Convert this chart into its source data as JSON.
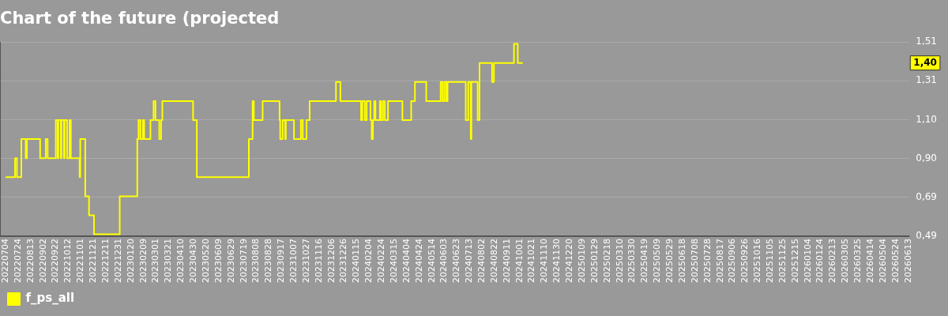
{
  "chart_data": {
    "type": "step",
    "title": "Chart of the future (projected",
    "x": [
      "2022-07-04",
      "2022-07-19",
      "2022-07-22",
      "2022-07-29",
      "2022-08-05",
      "2022-08-07",
      "2022-08-28",
      "2022-09-06",
      "2022-09-09",
      "2022-09-22",
      "2022-09-25",
      "2022-09-26",
      "2022-09-30",
      "2022-10-01",
      "2022-10-05",
      "2022-10-06",
      "2022-10-10",
      "2022-10-14",
      "2022-10-16",
      "2022-10-30",
      "2022-10-31",
      "2022-11-08",
      "2022-11-14",
      "2022-11-22",
      "2023-01-02",
      "2023-01-30",
      "2023-02-01",
      "2023-02-04",
      "2023-02-08",
      "2023-02-10",
      "2023-02-20",
      "2023-02-25",
      "2023-02-28",
      "2023-03-06",
      "2023-03-09",
      "2023-03-11",
      "2023-04-29",
      "2023-05-05",
      "2023-07-27",
      "2023-08-02",
      "2023-08-04",
      "2023-08-18",
      "2023-09-14",
      "2023-09-15",
      "2023-09-19",
      "2023-09-23",
      "2023-09-24",
      "2023-10-07",
      "2023-10-18",
      "2023-10-21",
      "2023-10-27",
      "2023-11-01",
      "2023-12-13",
      "2023-12-20",
      "2024-01-22",
      "2024-01-24",
      "2024-01-28",
      "2024-01-31",
      "2024-02-06",
      "2024-02-08",
      "2024-02-10",
      "2024-02-12",
      "2024-02-14",
      "2024-02-21",
      "2024-02-23",
      "2024-02-26",
      "2024-02-29",
      "2024-03-05",
      "2024-03-28",
      "2024-04-11",
      "2024-04-17",
      "2024-05-05",
      "2024-05-28",
      "2024-05-31",
      "2024-06-03",
      "2024-06-06",
      "2024-06-08",
      "2024-07-07",
      "2024-07-11",
      "2024-07-15",
      "2024-07-16",
      "2024-07-26",
      "2024-07-29",
      "2024-08-18",
      "2024-08-21",
      "2024-09-22",
      "2024-09-28",
      "2024-10-06"
    ],
    "series": [
      {
        "name": "f_ps_all",
        "color": "#ffff00",
        "values": [
          0.8,
          0.9,
          0.8,
          1.0,
          0.9,
          1.0,
          0.9,
          1.0,
          0.9,
          1.1,
          0.9,
          1.1,
          0.9,
          1.1,
          0.9,
          1.1,
          0.9,
          1.1,
          0.9,
          0.8,
          1.0,
          0.7,
          0.6,
          0.5,
          0.7,
          1.0,
          1.1,
          1.0,
          1.1,
          1.0,
          1.1,
          1.2,
          1.1,
          1.0,
          1.1,
          1.2,
          1.1,
          0.8,
          1.0,
          1.2,
          1.1,
          1.2,
          1.1,
          1.0,
          1.1,
          1.0,
          1.1,
          1.0,
          1.1,
          1.0,
          1.1,
          1.2,
          1.3,
          1.2,
          1.1,
          1.2,
          1.1,
          1.2,
          1.1,
          1.0,
          1.1,
          1.2,
          1.1,
          1.2,
          1.1,
          1.2,
          1.1,
          1.2,
          1.1,
          1.2,
          1.3,
          1.2,
          1.3,
          1.2,
          1.3,
          1.2,
          1.3,
          1.1,
          1.3,
          1.0,
          1.3,
          1.1,
          1.4,
          1.3,
          1.4,
          1.5,
          1.4,
          1.4
        ]
      }
    ],
    "xlim": [
      "2022-06-25",
      "2026-06-15"
    ],
    "xticks": [
      {
        "value": "2022-07-04",
        "label": "20220704"
      },
      {
        "value": "2022-07-24",
        "label": "20220724"
      },
      {
        "value": "2022-08-13",
        "label": "20220813"
      },
      {
        "value": "2022-09-02",
        "label": "20220902"
      },
      {
        "value": "2022-09-22",
        "label": "20220922"
      },
      {
        "value": "2022-10-12",
        "label": "20221012"
      },
      {
        "value": "2022-11-01",
        "label": "20221101"
      },
      {
        "value": "2022-11-21",
        "label": "20221121"
      },
      {
        "value": "2022-12-11",
        "label": "20221211"
      },
      {
        "value": "2022-12-31",
        "label": "20221231"
      },
      {
        "value": "2023-01-20",
        "label": "20230120"
      },
      {
        "value": "2023-02-09",
        "label": "20230209"
      },
      {
        "value": "2023-03-01",
        "label": "20230301"
      },
      {
        "value": "2023-03-21",
        "label": "20230321"
      },
      {
        "value": "2023-04-10",
        "label": "20230410"
      },
      {
        "value": "2023-04-30",
        "label": "20230430"
      },
      {
        "value": "2023-05-20",
        "label": "20230520"
      },
      {
        "value": "2023-06-09",
        "label": "20230609"
      },
      {
        "value": "2023-06-29",
        "label": "20230629"
      },
      {
        "value": "2023-07-19",
        "label": "20230719"
      },
      {
        "value": "2023-08-08",
        "label": "20230808"
      },
      {
        "value": "2023-08-28",
        "label": "20230828"
      },
      {
        "value": "2023-09-17",
        "label": "20230917"
      },
      {
        "value": "2023-10-07",
        "label": "20231007"
      },
      {
        "value": "2023-10-27",
        "label": "20231027"
      },
      {
        "value": "2023-11-16",
        "label": "20231116"
      },
      {
        "value": "2023-12-06",
        "label": "20231206"
      },
      {
        "value": "2023-12-26",
        "label": "20231226"
      },
      {
        "value": "2024-01-15",
        "label": "20240115"
      },
      {
        "value": "2024-02-04",
        "label": "20240204"
      },
      {
        "value": "2024-02-24",
        "label": "20240224"
      },
      {
        "value": "2024-03-15",
        "label": "20240315"
      },
      {
        "value": "2024-04-04",
        "label": "20240404"
      },
      {
        "value": "2024-04-24",
        "label": "20240424"
      },
      {
        "value": "2024-05-14",
        "label": "20240514"
      },
      {
        "value": "2024-06-03",
        "label": "20240603"
      },
      {
        "value": "2024-06-23",
        "label": "20240623"
      },
      {
        "value": "2024-07-13",
        "label": "20240713"
      },
      {
        "value": "2024-08-02",
        "label": "20240802"
      },
      {
        "value": "2024-08-22",
        "label": "20240822"
      },
      {
        "value": "2024-09-11",
        "label": "20240911"
      },
      {
        "value": "2024-10-01",
        "label": "20241001"
      },
      {
        "value": "2024-10-21",
        "label": "20241021"
      },
      {
        "value": "2024-11-10",
        "label": "20241110"
      },
      {
        "value": "2024-11-30",
        "label": "20241130"
      },
      {
        "value": "2024-12-20",
        "label": "20241220"
      },
      {
        "value": "2025-01-09",
        "label": "20250109"
      },
      {
        "value": "2025-01-29",
        "label": "20250129"
      },
      {
        "value": "2025-02-18",
        "label": "20250218"
      },
      {
        "value": "2025-03-10",
        "label": "20250310"
      },
      {
        "value": "2025-03-30",
        "label": "20250330"
      },
      {
        "value": "2025-04-19",
        "label": "20250419"
      },
      {
        "value": "2025-05-09",
        "label": "20250509"
      },
      {
        "value": "2025-05-29",
        "label": "20250529"
      },
      {
        "value": "2025-06-18",
        "label": "20250618"
      },
      {
        "value": "2025-07-08",
        "label": "20250708"
      },
      {
        "value": "2025-07-28",
        "label": "20250728"
      },
      {
        "value": "2025-08-17",
        "label": "20250817"
      },
      {
        "value": "2025-09-06",
        "label": "20250906"
      },
      {
        "value": "2025-09-26",
        "label": "20250926"
      },
      {
        "value": "2025-10-16",
        "label": "20251016"
      },
      {
        "value": "2025-11-05",
        "label": "20251105"
      },
      {
        "value": "2025-11-25",
        "label": "20251125"
      },
      {
        "value": "2025-12-15",
        "label": "20251215"
      },
      {
        "value": "2026-01-04",
        "label": "20260104"
      },
      {
        "value": "2026-01-24",
        "label": "20260124"
      },
      {
        "value": "2026-02-13",
        "label": "20260213"
      },
      {
        "value": "2026-03-05",
        "label": "20260305"
      },
      {
        "value": "2026-03-25",
        "label": "20260325"
      },
      {
        "value": "2026-04-14",
        "label": "20260414"
      },
      {
        "value": "2026-05-04",
        "label": "20260504"
      },
      {
        "value": "2026-05-24",
        "label": "20260524"
      },
      {
        "value": "2026-06-13",
        "label": "20260613"
      }
    ],
    "ylim": [
      0.49,
      1.51
    ],
    "yticks": [
      {
        "value": 0.49,
        "label": "0,49"
      },
      {
        "value": 0.694,
        "label": "0,69"
      },
      {
        "value": 0.898,
        "label": "0,90"
      },
      {
        "value": 1.102,
        "label": "1,10"
      },
      {
        "value": 1.306,
        "label": "1,31"
      },
      {
        "value": 1.51,
        "label": "1,51"
      }
    ],
    "annotations": [
      "1,40"
    ],
    "grid": "y",
    "legend": "bottom left"
  }
}
